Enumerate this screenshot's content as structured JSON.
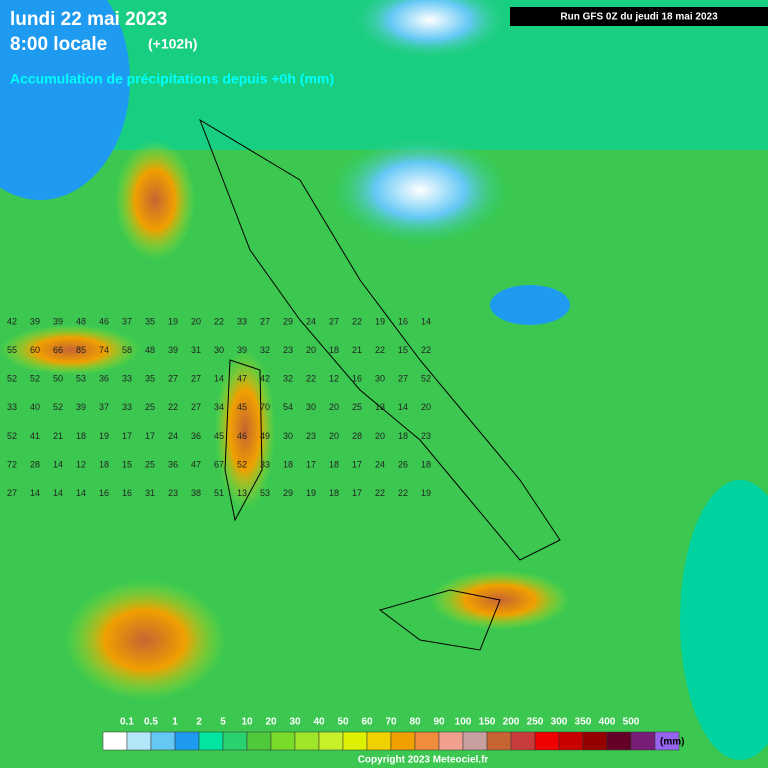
{
  "header": {
    "date": "lundi 22 mai 2023",
    "time": "8:00 locale",
    "lead": "(+102h)",
    "subtitle": "Accumulation de précipitations depuis +0h (mm)",
    "run": "Run GFS 0Z du jeudi 18 mai 2023"
  },
  "grid": {
    "rows": [
      [
        42,
        39,
        39,
        48,
        46,
        37,
        35,
        19,
        20,
        22,
        33,
        27,
        29,
        24,
        27,
        22,
        19,
        16,
        14
      ],
      [
        55,
        60,
        66,
        85,
        74,
        58,
        48,
        39,
        31,
        30,
        39,
        32,
        23,
        20,
        18,
        21,
        22,
        15,
        22
      ],
      [
        52,
        52,
        50,
        53,
        36,
        33,
        35,
        27,
        27,
        14,
        47,
        42,
        32,
        22,
        12,
        16,
        30,
        27,
        52
      ],
      [
        33,
        40,
        52,
        39,
        37,
        33,
        25,
        22,
        27,
        34,
        45,
        70,
        54,
        30,
        20,
        25,
        13,
        14,
        20
      ],
      [
        52,
        41,
        21,
        18,
        19,
        17,
        17,
        24,
        36,
        45,
        46,
        49,
        30,
        23,
        20,
        28,
        20,
        18,
        23
      ],
      [
        72,
        28,
        14,
        12,
        18,
        15,
        25,
        36,
        47,
        67,
        52,
        33,
        18,
        17,
        18,
        17,
        24,
        26,
        18
      ],
      [
        27,
        14,
        14,
        14,
        16,
        16,
        31,
        23,
        38,
        51,
        13,
        53,
        29,
        19,
        18,
        17,
        22,
        22,
        19
      ]
    ]
  },
  "legend": {
    "labels": [
      "0.1",
      "0.5",
      "1",
      "2",
      "5",
      "10",
      "20",
      "30",
      "40",
      "50",
      "60",
      "70",
      "80",
      "90",
      "100",
      "150",
      "200",
      "250",
      "300",
      "350",
      "400",
      "500"
    ],
    "colors": [
      "#ffffff",
      "#b4e6fa",
      "#64c8f5",
      "#1e9bf0",
      "#00e6a0",
      "#28d26e",
      "#50c83c",
      "#78dc28",
      "#a0e628",
      "#c8f028",
      "#dcf000",
      "#f0d200",
      "#f0a000",
      "#f08c3c",
      "#f0a08c",
      "#c8a0a0",
      "#c86432",
      "#c83c3c",
      "#f00000",
      "#c80000",
      "#960000",
      "#640028",
      "#781e78",
      "#9664f0"
    ],
    "unit": "(mm)"
  },
  "footer": {
    "copyright": "Copyright 2023 Meteociel.fr"
  }
}
